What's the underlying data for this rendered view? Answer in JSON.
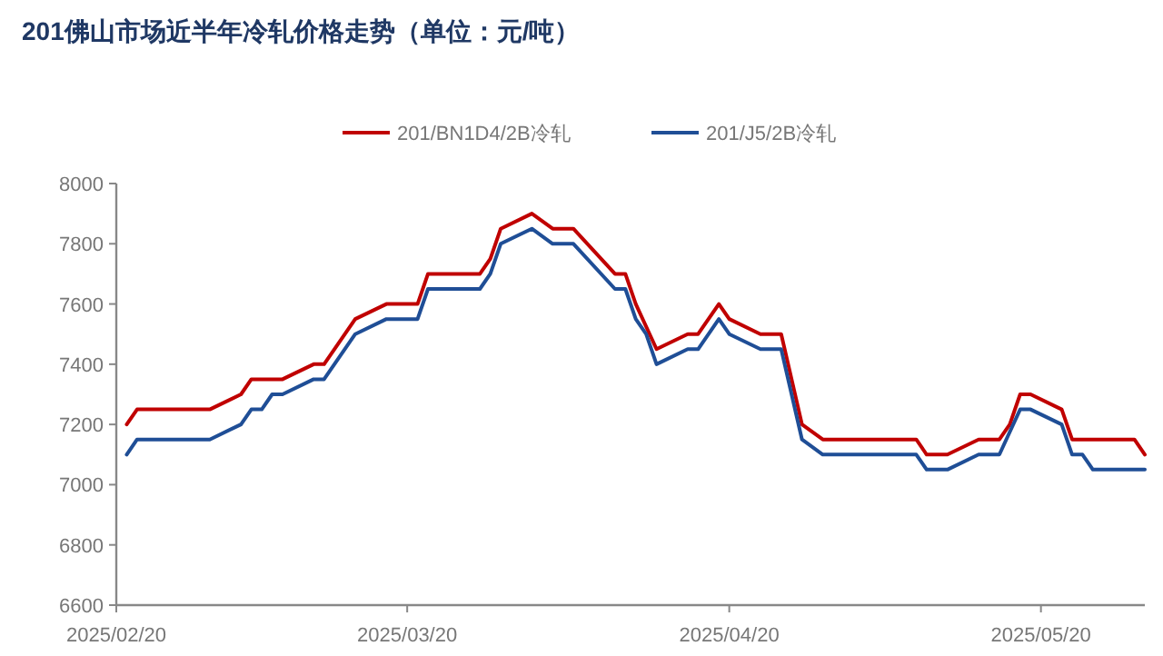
{
  "chart_data": {
    "type": "line",
    "title": "201佛山市场近半年冷轧价格走势（单位：元/吨）",
    "series": [
      {
        "name": "201/BN1D4/2B冷轧",
        "color": "#c00000",
        "x": [
          "2025-02-21",
          "2025-02-22",
          "2025-03-01",
          "2025-03-04",
          "2025-03-05",
          "2025-03-08",
          "2025-03-11",
          "2025-03-12",
          "2025-03-15",
          "2025-03-18",
          "2025-03-21",
          "2025-03-22",
          "2025-03-27",
          "2025-03-28",
          "2025-03-29",
          "2025-04-01",
          "2025-04-03",
          "2025-04-05",
          "2025-04-09",
          "2025-04-10",
          "2025-04-11",
          "2025-04-13",
          "2025-04-16",
          "2025-04-17",
          "2025-04-19",
          "2025-04-20",
          "2025-04-23",
          "2025-04-25",
          "2025-04-27",
          "2025-04-29",
          "2025-05-08",
          "2025-05-09",
          "2025-05-11",
          "2025-05-14",
          "2025-05-16",
          "2025-05-17",
          "2025-05-18",
          "2025-05-19",
          "2025-05-22",
          "2025-05-23",
          "2025-05-29",
          "2025-05-30"
        ],
        "values": [
          7200,
          7250,
          7250,
          7300,
          7350,
          7350,
          7400,
          7400,
          7550,
          7600,
          7600,
          7700,
          7700,
          7750,
          7850,
          7900,
          7850,
          7850,
          7700,
          7700,
          7600,
          7450,
          7500,
          7500,
          7600,
          7550,
          7500,
          7500,
          7200,
          7150,
          7150,
          7100,
          7100,
          7150,
          7150,
          7200,
          7300,
          7300,
          7250,
          7150,
          7150,
          7100
        ]
      },
      {
        "name": "201/J5/2B冷轧",
        "color": "#1f4e96",
        "x": [
          "2025-02-21",
          "2025-02-22",
          "2025-03-01",
          "2025-03-04",
          "2025-03-05",
          "2025-03-06",
          "2025-03-07",
          "2025-03-08",
          "2025-03-11",
          "2025-03-12",
          "2025-03-15",
          "2025-03-18",
          "2025-03-21",
          "2025-03-22",
          "2025-03-27",
          "2025-03-28",
          "2025-03-29",
          "2025-04-01",
          "2025-04-03",
          "2025-04-05",
          "2025-04-09",
          "2025-04-10",
          "2025-04-11",
          "2025-04-12",
          "2025-04-13",
          "2025-04-16",
          "2025-04-17",
          "2025-04-19",
          "2025-04-20",
          "2025-04-23",
          "2025-04-25",
          "2025-04-27",
          "2025-04-29",
          "2025-05-08",
          "2025-05-09",
          "2025-05-11",
          "2025-05-14",
          "2025-05-16",
          "2025-05-18",
          "2025-05-19",
          "2025-05-22",
          "2025-05-23",
          "2025-05-24",
          "2025-05-25",
          "2025-05-30"
        ],
        "values": [
          7100,
          7150,
          7150,
          7200,
          7250,
          7250,
          7300,
          7300,
          7350,
          7350,
          7500,
          7550,
          7550,
          7650,
          7650,
          7700,
          7800,
          7850,
          7800,
          7800,
          7650,
          7650,
          7550,
          7500,
          7400,
          7450,
          7450,
          7550,
          7500,
          7450,
          7450,
          7150,
          7100,
          7100,
          7050,
          7050,
          7100,
          7100,
          7250,
          7250,
          7200,
          7100,
          7100,
          7050,
          7050
        ]
      }
    ],
    "xlim": [
      "2025-02-20",
      "2025-05-30"
    ],
    "xticks": [
      {
        "value": "2025-02-20",
        "label": "2025/02/20"
      },
      {
        "value": "2025-03-20",
        "label": "2025/03/20"
      },
      {
        "value": "2025-04-20",
        "label": "2025/04/20"
      },
      {
        "value": "2025-05-20",
        "label": "2025/05/20"
      }
    ],
    "ylim": [
      6600,
      8000
    ],
    "yticks": [
      6600,
      6800,
      7000,
      7200,
      7400,
      7600,
      7800,
      8000
    ],
    "legend": "top",
    "grid": false,
    "marker": "none",
    "line_style": "solid"
  }
}
